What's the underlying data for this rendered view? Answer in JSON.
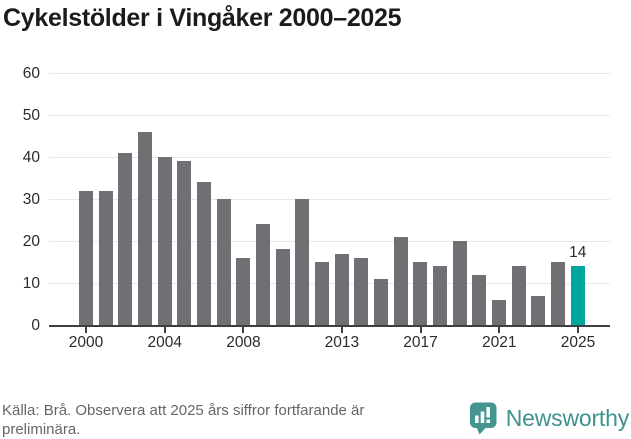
{
  "title": "Cykelstölder i Vingåker 2000–2025",
  "chart_data": {
    "type": "bar",
    "title": "Cykelstölder i Vingåker 2000–2025",
    "categories": [
      2000,
      2001,
      2002,
      2003,
      2004,
      2005,
      2006,
      2007,
      2008,
      2009,
      2010,
      2011,
      2012,
      2013,
      2014,
      2015,
      2016,
      2017,
      2018,
      2019,
      2020,
      2021,
      2022,
      2023,
      2024,
      2025
    ],
    "values": [
      32,
      32,
      41,
      46,
      40,
      39,
      34,
      30,
      16,
      24,
      18,
      30,
      15,
      17,
      16,
      11,
      21,
      15,
      14,
      20,
      12,
      6,
      14,
      7,
      15,
      14
    ],
    "xlabel": "",
    "ylabel": "",
    "ylim": [
      0,
      60
    ],
    "yticks": [
      0,
      10,
      20,
      30,
      40,
      50,
      60
    ],
    "xtick_labels": [
      "2000",
      "2004",
      "2008",
      "2013",
      "2017",
      "2021",
      "2025"
    ],
    "xtick_indices": [
      0,
      4,
      8,
      13,
      17,
      21,
      25
    ],
    "grid": "horizontal",
    "legend": "none",
    "bar_color": "#706f74",
    "highlight_index": 25,
    "highlight_color": "#00a69c",
    "highlight_label": "14"
  },
  "footer": {
    "source_text": "Källa: Brå. Observera att 2025 års siffror fortfarande är preliminära.",
    "logo_text": "Newsworthy",
    "logo_color": "#3e938c",
    "logo_icon": "speech-bubble-bar-chart-icon"
  }
}
